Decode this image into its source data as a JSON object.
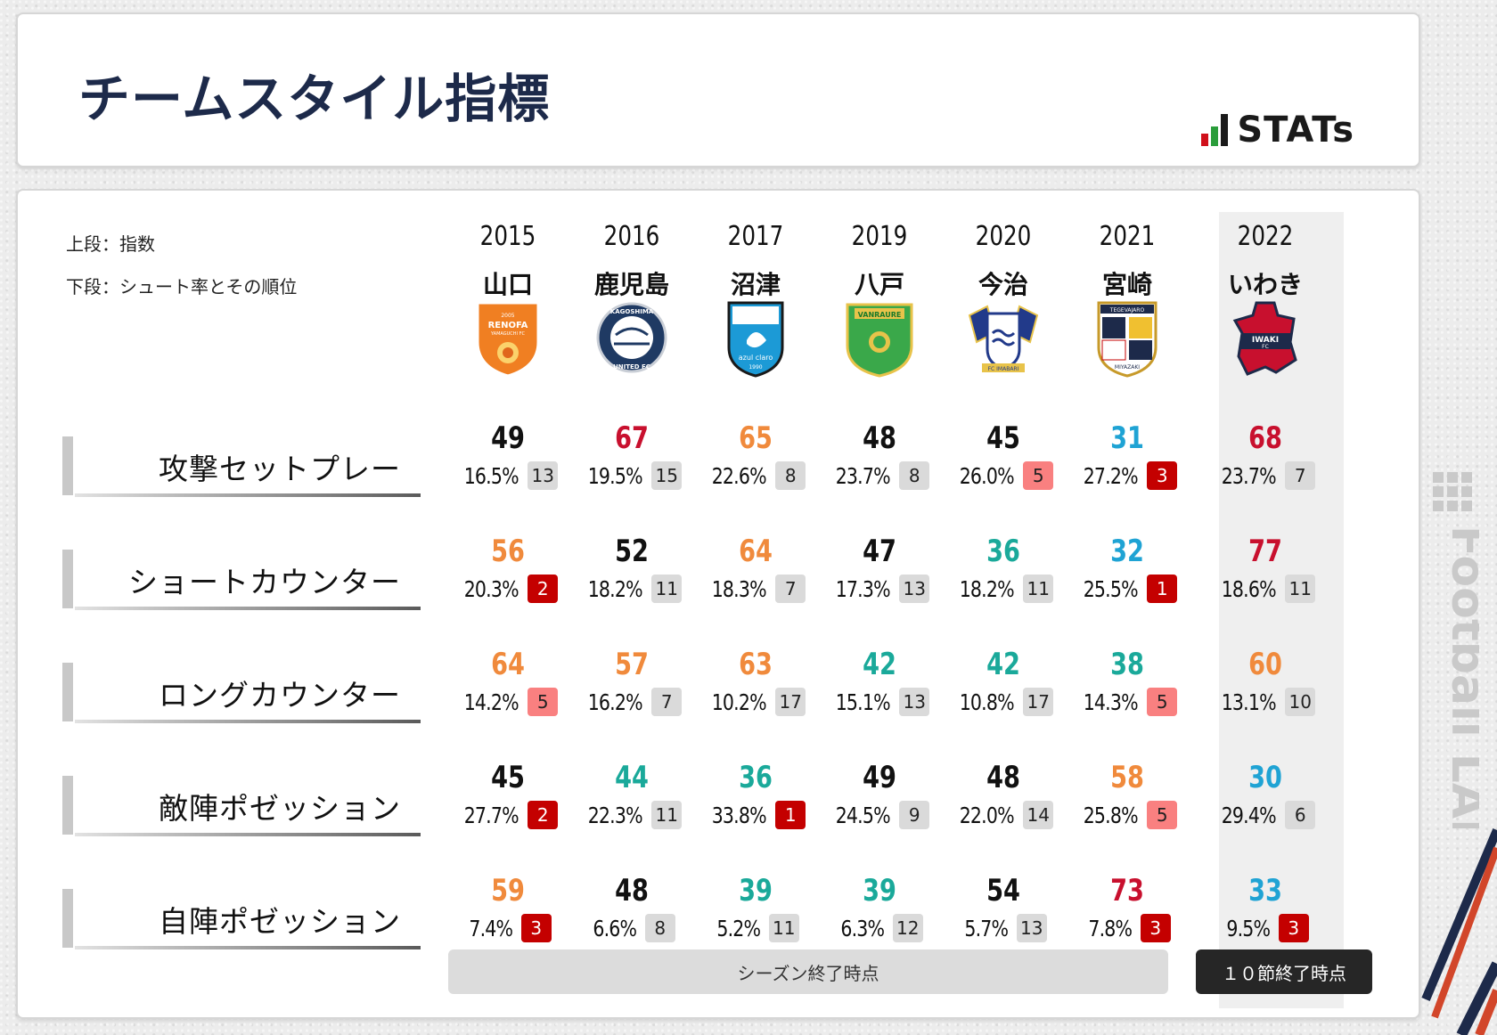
{
  "header": {
    "title": "チームスタイル指標",
    "logo_text": "STATs",
    "logo_bar_colors": [
      "#d0101b",
      "#2a9d3a",
      "#1a1a1a"
    ]
  },
  "legend": {
    "top": "上段：指数",
    "bottom": "下段：シュート率とその順位"
  },
  "colors": {
    "black": "#111111",
    "red": "#c8102e",
    "orange": "#f08a3c",
    "teal": "#1aa99a",
    "blue": "#1fa3d4",
    "rank_top": "#c40000",
    "rank_good": "#f98080",
    "rank_neutral": "#dadada"
  },
  "teams": [
    {
      "year": "2015",
      "name": "山口",
      "emblem": "renofa-yamaguchi-emblem"
    },
    {
      "year": "2016",
      "name": "鹿児島",
      "emblem": "kagoshima-united-emblem"
    },
    {
      "year": "2017",
      "name": "沼津",
      "emblem": "azul-claro-numazu-emblem"
    },
    {
      "year": "2019",
      "name": "八戸",
      "emblem": "vanraure-hachinohe-emblem"
    },
    {
      "year": "2020",
      "name": "今治",
      "emblem": "fc-imabari-emblem"
    },
    {
      "year": "2021",
      "name": "宮崎",
      "emblem": "tegevajaro-miyazaki-emblem"
    },
    {
      "year": "2022",
      "name": "いわき",
      "emblem": "iwaki-fc-emblem"
    }
  ],
  "emblem_text": {
    "renofa": {
      "top": "2005",
      "name": "RENOFA",
      "sub": "YAMAGUCHI FC"
    },
    "kagoshima": {
      "top": "KAGOSHIMA",
      "bottom": "UNITED FC"
    },
    "numazu": {
      "name": "azul claro",
      "year": "1990"
    },
    "hachinohe": {
      "name": "VANRAURE"
    },
    "imabari": {
      "name": "FC IMABARI"
    },
    "miyazaki": {
      "top": "TEGEVAJARO",
      "bottom": "MIYAZAKI"
    },
    "iwaki": {
      "line1": "IWAKI",
      "line2": "FC"
    }
  },
  "rows": [
    {
      "label": "攻撃セットプレー",
      "cells": [
        {
          "index": "49",
          "color": "black",
          "rate": "16.5%",
          "rank": "13",
          "rank_style": "neutral"
        },
        {
          "index": "67",
          "color": "red",
          "rate": "19.5%",
          "rank": "15",
          "rank_style": "neutral"
        },
        {
          "index": "65",
          "color": "orange",
          "rate": "22.6%",
          "rank": "8",
          "rank_style": "neutral"
        },
        {
          "index": "48",
          "color": "black",
          "rate": "23.7%",
          "rank": "8",
          "rank_style": "neutral"
        },
        {
          "index": "45",
          "color": "black",
          "rate": "26.0%",
          "rank": "5",
          "rank_style": "good"
        },
        {
          "index": "31",
          "color": "blue",
          "rate": "27.2%",
          "rank": "3",
          "rank_style": "top"
        },
        {
          "index": "68",
          "color": "red",
          "rate": "23.7%",
          "rank": "7",
          "rank_style": "neutral"
        }
      ]
    },
    {
      "label": "ショートカウンター",
      "cells": [
        {
          "index": "56",
          "color": "orange",
          "rate": "20.3%",
          "rank": "2",
          "rank_style": "top"
        },
        {
          "index": "52",
          "color": "black",
          "rate": "18.2%",
          "rank": "11",
          "rank_style": "neutral"
        },
        {
          "index": "64",
          "color": "orange",
          "rate": "18.3%",
          "rank": "7",
          "rank_style": "neutral"
        },
        {
          "index": "47",
          "color": "black",
          "rate": "17.3%",
          "rank": "13",
          "rank_style": "neutral"
        },
        {
          "index": "36",
          "color": "teal",
          "rate": "18.2%",
          "rank": "11",
          "rank_style": "neutral"
        },
        {
          "index": "32",
          "color": "blue",
          "rate": "25.5%",
          "rank": "1",
          "rank_style": "top"
        },
        {
          "index": "77",
          "color": "red",
          "rate": "18.6%",
          "rank": "11",
          "rank_style": "neutral"
        }
      ]
    },
    {
      "label": "ロングカウンター",
      "cells": [
        {
          "index": "64",
          "color": "orange",
          "rate": "14.2%",
          "rank": "5",
          "rank_style": "good"
        },
        {
          "index": "57",
          "color": "orange",
          "rate": "16.2%",
          "rank": "7",
          "rank_style": "neutral"
        },
        {
          "index": "63",
          "color": "orange",
          "rate": "10.2%",
          "rank": "17",
          "rank_style": "neutral"
        },
        {
          "index": "42",
          "color": "teal",
          "rate": "15.1%",
          "rank": "13",
          "rank_style": "neutral"
        },
        {
          "index": "42",
          "color": "teal",
          "rate": "10.8%",
          "rank": "17",
          "rank_style": "neutral"
        },
        {
          "index": "38",
          "color": "teal",
          "rate": "14.3%",
          "rank": "5",
          "rank_style": "good"
        },
        {
          "index": "60",
          "color": "orange",
          "rate": "13.1%",
          "rank": "10",
          "rank_style": "neutral"
        }
      ]
    },
    {
      "label": "敵陣ポゼッション",
      "cells": [
        {
          "index": "45",
          "color": "black",
          "rate": "27.7%",
          "rank": "2",
          "rank_style": "top"
        },
        {
          "index": "44",
          "color": "teal",
          "rate": "22.3%",
          "rank": "11",
          "rank_style": "neutral"
        },
        {
          "index": "36",
          "color": "teal",
          "rate": "33.8%",
          "rank": "1",
          "rank_style": "top"
        },
        {
          "index": "49",
          "color": "black",
          "rate": "24.5%",
          "rank": "9",
          "rank_style": "neutral"
        },
        {
          "index": "48",
          "color": "black",
          "rate": "22.0%",
          "rank": "14",
          "rank_style": "neutral"
        },
        {
          "index": "58",
          "color": "orange",
          "rate": "25.8%",
          "rank": "5",
          "rank_style": "good"
        },
        {
          "index": "30",
          "color": "blue",
          "rate": "29.4%",
          "rank": "6",
          "rank_style": "neutral"
        }
      ]
    },
    {
      "label": "自陣ポゼッション",
      "cells": [
        {
          "index": "59",
          "color": "orange",
          "rate": "7.4%",
          "rank": "3",
          "rank_style": "top"
        },
        {
          "index": "48",
          "color": "black",
          "rate": "6.6%",
          "rank": "8",
          "rank_style": "neutral"
        },
        {
          "index": "39",
          "color": "teal",
          "rate": "5.2%",
          "rank": "11",
          "rank_style": "neutral"
        },
        {
          "index": "39",
          "color": "teal",
          "rate": "6.3%",
          "rank": "12",
          "rank_style": "neutral"
        },
        {
          "index": "54",
          "color": "black",
          "rate": "5.7%",
          "rank": "13",
          "rank_style": "neutral"
        },
        {
          "index": "73",
          "color": "red",
          "rate": "7.8%",
          "rank": "3",
          "rank_style": "top"
        },
        {
          "index": "33",
          "color": "blue",
          "rate": "9.5%",
          "rank": "3",
          "rank_style": "top"
        }
      ]
    }
  ],
  "footer": {
    "season_label": "シーズン終了時点",
    "round_label": "１０節終了時点"
  },
  "watermark": {
    "text": "Football LAB"
  }
}
